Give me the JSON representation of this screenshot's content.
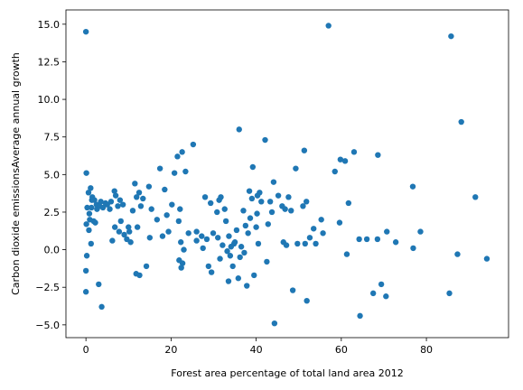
{
  "chart_data": {
    "type": "scatter",
    "xlabel": "Forest area percentage of total land area 2012",
    "ylabel": "Carbon dioxide emissionsAverage annual growth",
    "xlim": [
      -4.7,
      99.3
    ],
    "ylim": [
      -5.85,
      15.95
    ],
    "xticks": [
      0,
      20,
      40,
      60,
      80
    ],
    "yticks": [
      -5.0,
      -2.5,
      0.0,
      2.5,
      5.0,
      7.5,
      10.0,
      12.5,
      15.0
    ],
    "xtick_labels": [
      "0",
      "20",
      "40",
      "60",
      "80"
    ],
    "ytick_labels": [
      "−5.0",
      "−2.5",
      "0.0",
      "2.5",
      "5.0",
      "7.5",
      "10.0",
      "12.5",
      "15.0"
    ],
    "marker_color": "#1f77b4",
    "points": [
      [
        0.0,
        14.5
      ],
      [
        0.1,
        5.1
      ],
      [
        0.3,
        2.8
      ],
      [
        0.1,
        1.7
      ],
      [
        0.2,
        -0.4
      ],
      [
        0.0,
        -1.4
      ],
      [
        0.0,
        -2.8
      ],
      [
        0.6,
        3.8
      ],
      [
        0.8,
        2.4
      ],
      [
        1.1,
        4.1
      ],
      [
        1.5,
        3.5
      ],
      [
        1.3,
        2.8
      ],
      [
        2.0,
        3.3
      ],
      [
        2.5,
        3.0
      ],
      [
        0.9,
        2.0
      ],
      [
        1.8,
        1.9
      ],
      [
        0.7,
        1.3
      ],
      [
        1.2,
        0.4
      ],
      [
        2.6,
        2.7
      ],
      [
        3.2,
        2.9
      ],
      [
        3.5,
        3.2
      ],
      [
        4.0,
        2.8
      ],
      [
        3.0,
        -2.3
      ],
      [
        3.7,
        -3.8
      ],
      [
        5.0,
        3.0
      ],
      [
        5.6,
        2.7
      ],
      [
        6.2,
        0.6
      ],
      [
        6.7,
        3.9
      ],
      [
        7.0,
        3.6
      ],
      [
        7.5,
        2.9
      ],
      [
        8.0,
        3.3
      ],
      [
        8.7,
        3.0
      ],
      [
        8.2,
        1.9
      ],
      [
        9.0,
        1.0
      ],
      [
        7.8,
        1.2
      ],
      [
        6.8,
        1.5
      ],
      [
        9.6,
        0.7
      ],
      [
        10.2,
        1.2
      ],
      [
        10.5,
        0.5
      ],
      [
        11.0,
        2.6
      ],
      [
        11.5,
        4.4
      ],
      [
        11.9,
        3.5
      ],
      [
        12.5,
        3.8
      ],
      [
        12.9,
        2.9
      ],
      [
        13.4,
        3.4
      ],
      [
        12.1,
        1.5
      ],
      [
        11.8,
        -1.6
      ],
      [
        12.6,
        -1.7
      ],
      [
        14.2,
        -1.1
      ],
      [
        14.8,
        4.2
      ],
      [
        15.4,
        2.7
      ],
      [
        16.7,
        2.0
      ],
      [
        17.4,
        5.4
      ],
      [
        18.5,
        4.0
      ],
      [
        19.0,
        2.3
      ],
      [
        19.4,
        1.2
      ],
      [
        20.2,
        3.0
      ],
      [
        20.8,
        5.1
      ],
      [
        21.5,
        6.2
      ],
      [
        22.6,
        6.5
      ],
      [
        22.1,
        2.7
      ],
      [
        21.8,
        1.9
      ],
      [
        22.3,
        0.5
      ],
      [
        21.9,
        -0.7
      ],
      [
        22.7,
        -0.9
      ],
      [
        22.4,
        -1.2
      ],
      [
        23.4,
        5.2
      ],
      [
        25.2,
        7.0
      ],
      [
        24.1,
        1.1
      ],
      [
        23.0,
        0.0
      ],
      [
        26.0,
        0.6
      ],
      [
        27.2,
        0.9
      ],
      [
        28.0,
        3.5
      ],
      [
        28.4,
        0.7
      ],
      [
        29.3,
        3.1
      ],
      [
        29.9,
        1.1
      ],
      [
        28.8,
        -1.1
      ],
      [
        29.5,
        -1.5
      ],
      [
        31.3,
        3.3
      ],
      [
        30.8,
        2.5
      ],
      [
        31.7,
        3.5
      ],
      [
        31.0,
        0.8
      ],
      [
        32.1,
        0.3
      ],
      [
        31.5,
        -0.6
      ],
      [
        32.6,
        2.7
      ],
      [
        32.9,
        1.9
      ],
      [
        33.6,
        0.9
      ],
      [
        33.2,
        -0.1
      ],
      [
        34.1,
        0.2
      ],
      [
        34.8,
        0.4
      ],
      [
        33.9,
        -0.4
      ],
      [
        35.4,
        1.3
      ],
      [
        34.5,
        -1.1
      ],
      [
        33.5,
        -2.1
      ],
      [
        35.8,
        -1.9
      ],
      [
        36.2,
        -0.5
      ],
      [
        37.0,
        2.6
      ],
      [
        37.5,
        1.6
      ],
      [
        37.2,
        -0.2
      ],
      [
        37.8,
        -2.4
      ],
      [
        38.4,
        3.9
      ],
      [
        39.0,
        3.4
      ],
      [
        38.6,
        2.1
      ],
      [
        38.1,
        1.1
      ],
      [
        39.5,
        -1.7
      ],
      [
        40.3,
        3.6
      ],
      [
        40.8,
        3.8
      ],
      [
        41.2,
        3.2
      ],
      [
        40.2,
        2.4
      ],
      [
        40.0,
        1.5
      ],
      [
        40.5,
        0.4
      ],
      [
        42.1,
        7.3
      ],
      [
        42.8,
        1.7
      ],
      [
        43.3,
        3.2
      ],
      [
        43.7,
        2.5
      ],
      [
        42.5,
        -0.8
      ],
      [
        44.1,
        4.5
      ],
      [
        45.2,
        3.6
      ],
      [
        44.3,
        -4.9
      ],
      [
        46.1,
        2.9
      ],
      [
        46.8,
        2.7
      ],
      [
        46.4,
        0.5
      ],
      [
        47.6,
        3.5
      ],
      [
        47.1,
        0.3
      ],
      [
        48.2,
        2.6
      ],
      [
        48.6,
        -2.7
      ],
      [
        49.3,
        5.4
      ],
      [
        49.7,
        0.4
      ],
      [
        51.3,
        6.6
      ],
      [
        51.0,
        2.9
      ],
      [
        51.8,
        3.2
      ],
      [
        51.5,
        0.4
      ],
      [
        51.9,
        -3.4
      ],
      [
        52.6,
        0.8
      ],
      [
        53.5,
        1.4
      ],
      [
        54.0,
        0.4
      ],
      [
        55.3,
        2.0
      ],
      [
        55.7,
        1.1
      ],
      [
        57.0,
        14.9
      ],
      [
        58.5,
        5.2
      ],
      [
        59.8,
        6.0
      ],
      [
        59.6,
        1.8
      ],
      [
        60.9,
        5.9
      ],
      [
        61.7,
        3.1
      ],
      [
        61.3,
        -0.3
      ],
      [
        63.0,
        6.5
      ],
      [
        64.4,
        -4.4
      ],
      [
        64.2,
        0.7
      ],
      [
        66.0,
        0.7
      ],
      [
        67.5,
        -2.9
      ],
      [
        68.6,
        6.3
      ],
      [
        69.4,
        -2.3
      ],
      [
        68.5,
        0.7
      ],
      [
        70.7,
        1.2
      ],
      [
        70.5,
        -3.1
      ],
      [
        72.8,
        0.5
      ],
      [
        76.8,
        4.2
      ],
      [
        76.9,
        0.1
      ],
      [
        78.6,
        1.2
      ],
      [
        85.8,
        14.2
      ],
      [
        85.4,
        -2.9
      ],
      [
        87.3,
        -0.3
      ],
      [
        88.2,
        8.5
      ],
      [
        91.5,
        3.5
      ],
      [
        94.2,
        -0.6
      ],
      [
        35.0,
        0.5
      ],
      [
        36.5,
        0.2
      ],
      [
        36.0,
        8.0
      ],
      [
        39.2,
        5.5
      ],
      [
        26.0,
        1.2
      ],
      [
        27.5,
        0.1
      ],
      [
        18.0,
        0.9
      ],
      [
        15.0,
        0.8
      ],
      [
        10.0,
        1.5
      ],
      [
        5.9,
        3.2
      ],
      [
        4.6,
        3.1
      ],
      [
        2.2,
        1.8
      ],
      [
        1.4,
        3.3
      ]
    ]
  }
}
